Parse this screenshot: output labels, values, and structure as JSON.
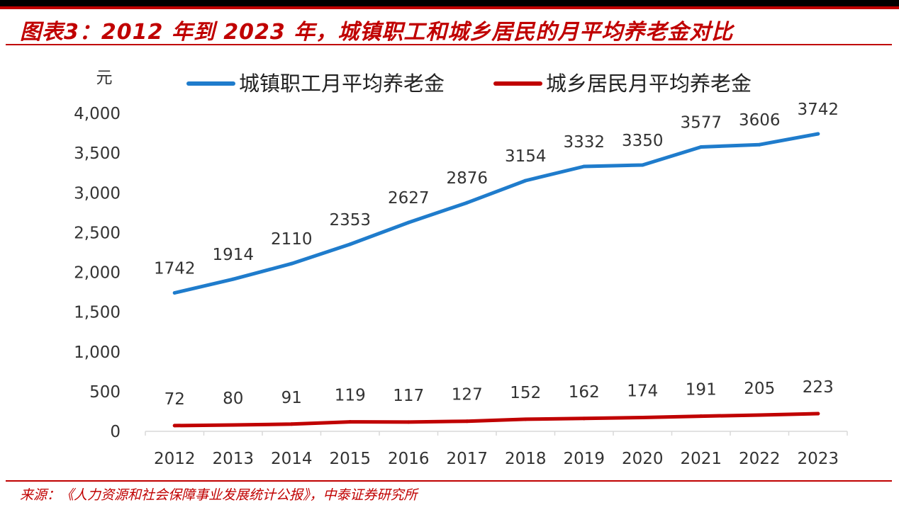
{
  "title": "图表3：2012 年到 2023 年，城镇职工和城乡居民的月平均养老金对比",
  "source": "来源：《人力资源和社会保障事业发展统计公报》，中泰证券研究所",
  "colors": {
    "accent": "#c00000",
    "series_urban": "#1f7ccc",
    "series_rural": "#c00000"
  },
  "chart_data": {
    "type": "line",
    "title": "图表3：2012 年到 2023 年，城镇职工和城乡居民的月平均养老金对比",
    "ylabel": "元",
    "xlabel": "",
    "x": [
      "2012",
      "2013",
      "2014",
      "2015",
      "2016",
      "2017",
      "2018",
      "2019",
      "2020",
      "2021",
      "2022",
      "2023"
    ],
    "ylim": [
      0,
      4000
    ],
    "yticks": [
      0,
      500,
      1000,
      1500,
      2000,
      2500,
      3000,
      3500,
      4000
    ],
    "ytick_labels": [
      "0",
      "500",
      "1,000",
      "1,500",
      "2,000",
      "2,500",
      "3,000",
      "3,500",
      "4,000"
    ],
    "grid": false,
    "legend_position": "top",
    "series": [
      {
        "name": "城镇职工月平均养老金",
        "color": "#1f7ccc",
        "values": [
          1742,
          1914,
          2110,
          2353,
          2627,
          2876,
          3154,
          3332,
          3350,
          3577,
          3606,
          3742
        ]
      },
      {
        "name": "城乡居民月平均养老金",
        "color": "#c00000",
        "values": [
          72,
          80,
          91,
          119,
          117,
          127,
          152,
          162,
          174,
          191,
          205,
          223
        ]
      }
    ]
  }
}
